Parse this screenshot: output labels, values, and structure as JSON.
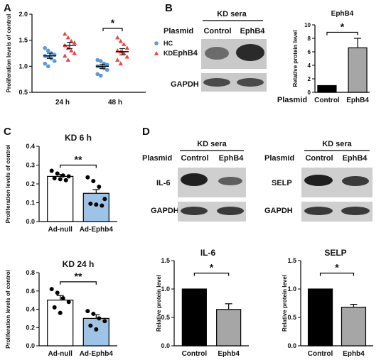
{
  "panels": {
    "A": "A",
    "B": "B",
    "C": "C",
    "D": "D"
  },
  "panel_b_header": {
    "group": "KD sera",
    "plasmid_label": "Plasmid",
    "control": "Control",
    "treatment": "EphB4",
    "row1": "EphB4",
    "row2": "GAPDH"
  },
  "panel_d_header_left": {
    "group": "KD sera",
    "plasmid_label": "Plasmid",
    "control": "Control",
    "treatment": "EphB4",
    "row1": "IL-6",
    "row2": "GAPDH"
  },
  "panel_d_header_right": {
    "group": "KD sera",
    "plasmid_label": "Plasmid",
    "control": "Control",
    "treatment": "EphB4",
    "row1": "SELP",
    "row2": "GAPDH"
  },
  "colors": {
    "hc": "#5b9bd5",
    "kd": "#e8454a",
    "black": "#000000",
    "gray": "#a6a6a6",
    "blue_bar": "#9dc3e6"
  },
  "chart_data": [
    {
      "id": "A",
      "type": "scatter",
      "ylabel": "Proliferation levels of control",
      "categories": [
        "24 h",
        "48 h"
      ],
      "ylim": [
        0.5,
        2.0
      ],
      "yticks": [
        "0.5",
        "1.0",
        "1.5",
        "2.0"
      ],
      "legend": {
        "position": "right",
        "entries": [
          "HC",
          "KD"
        ]
      },
      "significance": "*",
      "series": [
        {
          "name": "HC",
          "marker": "circle",
          "groups": [
            [
              1.35,
              1.3,
              1.25,
              1.22,
              1.2,
              1.18,
              1.15,
              1.1,
              1.05,
              1.0
            ],
            [
              1.12,
              1.1,
              1.05,
              1.03,
              1.0,
              0.98,
              0.96,
              0.93,
              0.85,
              0.82
            ]
          ],
          "means": [
            1.2,
            1.0
          ],
          "sems": [
            0.05,
            0.04
          ]
        },
        {
          "name": "KD",
          "marker": "triangle",
          "groups": [
            [
              1.62,
              1.55,
              1.48,
              1.45,
              1.4,
              1.35,
              1.3,
              1.25,
              1.2,
              1.12
            ],
            [
              1.55,
              1.48,
              1.42,
              1.35,
              1.3,
              1.28,
              1.25,
              1.18,
              1.12,
              1.05
            ]
          ],
          "means": [
            1.4,
            1.28
          ],
          "sems": [
            0.06,
            0.06
          ]
        }
      ]
    },
    {
      "id": "B",
      "type": "bar",
      "title": "EphB4",
      "ylabel": "Relative protein level",
      "categories": [
        "Control",
        "EphB4"
      ],
      "category_prefix": "Plasmid",
      "values": [
        1.0,
        6.6
      ],
      "errors": [
        0,
        1.4
      ],
      "ylim": [
        0,
        10
      ],
      "yticks": [
        "0",
        "2",
        "4",
        "6",
        "8",
        "10"
      ],
      "significance": "*"
    },
    {
      "id": "C1",
      "type": "bar",
      "title": "KD 6 h",
      "ylabel": "Proliferation levels of control",
      "categories": [
        "Ad-null",
        "Ad-Ephb4"
      ],
      "values": [
        0.24,
        0.15
      ],
      "errors": [
        0.01,
        0.02
      ],
      "ylim": [
        0,
        0.4
      ],
      "yticks": [
        "0.0",
        "0.1",
        "0.2",
        "0.3",
        "0.4"
      ],
      "significance": "**",
      "points": [
        [
          0.27,
          0.255,
          0.245,
          0.24,
          0.23,
          0.225,
          0.22
        ],
        [
          0.235,
          0.215,
          0.185,
          0.12,
          0.095,
          0.09,
          0.085
        ]
      ]
    },
    {
      "id": "C2",
      "type": "bar",
      "title": "KD 24 h",
      "ylabel": "Proliferation levels of control",
      "categories": [
        "Ad-null",
        "Ad-Ephb4"
      ],
      "values": [
        0.5,
        0.3
      ],
      "errors": [
        0.05,
        0.04
      ],
      "ylim": [
        0,
        0.8
      ],
      "yticks": [
        "0.0",
        "0.2",
        "0.4",
        "0.6",
        "0.8"
      ],
      "significance": "**",
      "points": [
        [
          0.62,
          0.58,
          0.52,
          0.48,
          0.42,
          0.36
        ],
        [
          0.38,
          0.35,
          0.3,
          0.27,
          0.22,
          0.18
        ]
      ]
    },
    {
      "id": "D1",
      "type": "bar",
      "title": "IL-6",
      "ylabel": "Relative protein level",
      "categories": [
        "Control",
        "Ephb4"
      ],
      "values": [
        1.0,
        0.64
      ],
      "errors": [
        0,
        0.1
      ],
      "ylim": [
        0,
        1.5
      ],
      "yticks": [
        "0.0",
        "0.5",
        "1.0",
        "1.5"
      ],
      "significance": "*"
    },
    {
      "id": "D2",
      "type": "bar",
      "title": "SELP",
      "ylabel": "Relative protein level",
      "categories": [
        "Control",
        "Ephb4"
      ],
      "values": [
        1.0,
        0.68
      ],
      "errors": [
        0,
        0.05
      ],
      "ylim": [
        0,
        1.5
      ],
      "yticks": [
        "0.0",
        "0.5",
        "1.0",
        "1.5"
      ],
      "significance": "*"
    }
  ]
}
